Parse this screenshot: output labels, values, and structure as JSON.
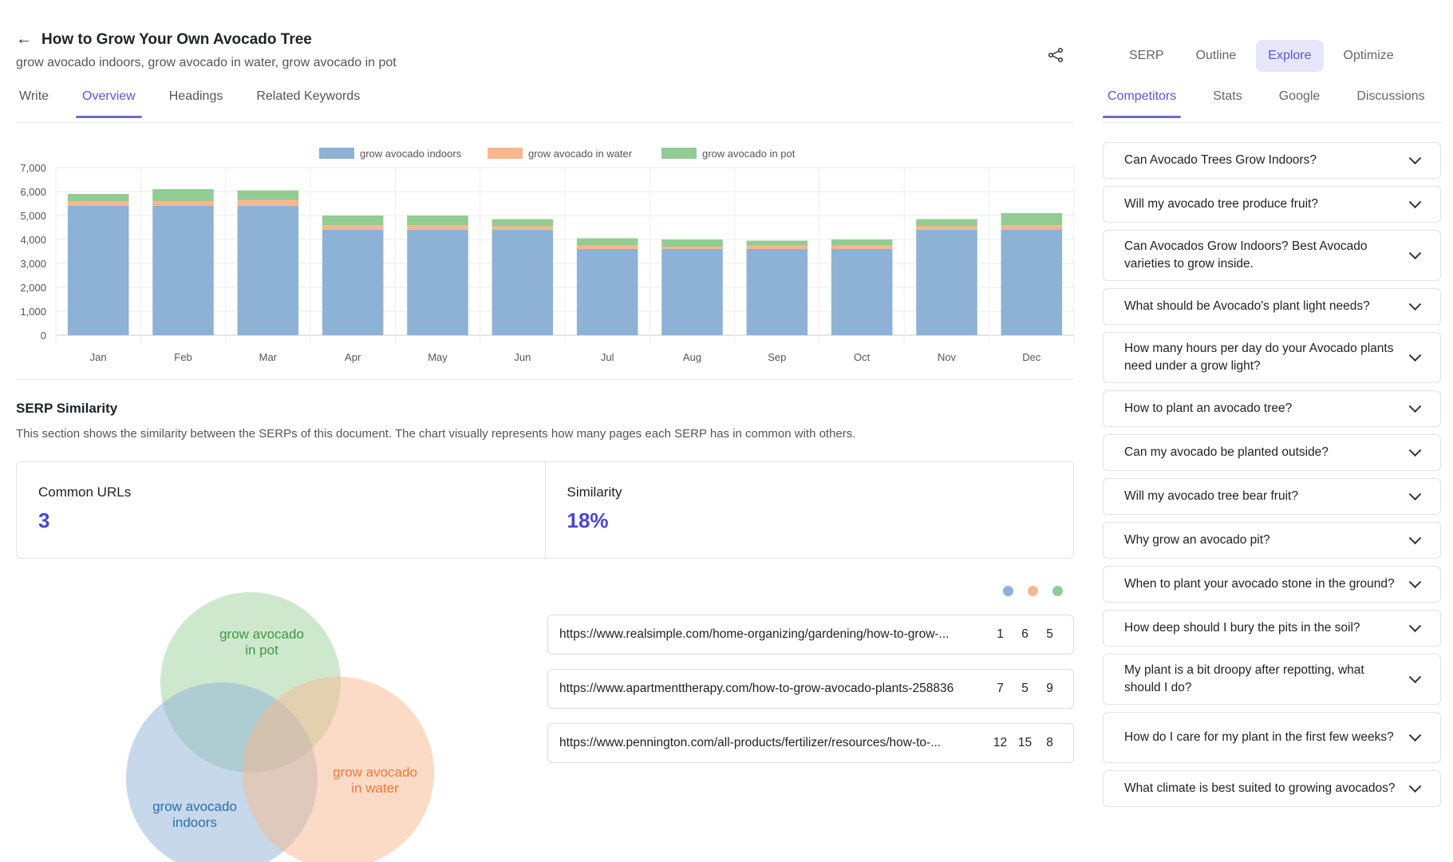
{
  "header": {
    "title": "How to Grow Your Own Avocado Tree",
    "subtitle": "grow avocado indoors, grow avocado in water, grow avocado in pot"
  },
  "tabs": [
    {
      "label": "Write"
    },
    {
      "label": "Overview",
      "active": true
    },
    {
      "label": "Headings"
    },
    {
      "label": "Related Keywords"
    }
  ],
  "right_top_tabs": [
    {
      "label": "SERP"
    },
    {
      "label": "Outline"
    },
    {
      "label": "Explore",
      "active": true
    },
    {
      "label": "Optimize"
    }
  ],
  "right_sub_tabs": [
    {
      "label": "Competitors",
      "active": true
    },
    {
      "label": "Stats"
    },
    {
      "label": "Google"
    },
    {
      "label": "Discussions"
    }
  ],
  "questions": [
    "Can Avocado Trees Grow Indoors?",
    "Will my avocado tree produce fruit?",
    "Can Avocados Grow Indoors? Best Avocado varieties to grow inside.",
    "What should be Avocado's plant light needs?",
    "How many hours per day do your Avocado plants need under a grow light?",
    "How to plant an avocado tree?",
    "Can my avocado be planted outside?",
    "Will my avocado tree bear fruit?",
    "Why grow an avocado pit?",
    "When to plant your avocado stone in the ground?",
    "How deep should I bury the pits in the soil?",
    "My plant is a bit droopy after repotting, what should I do?",
    "How do I care for my plant in the first few weeks?",
    "What climate is best suited to growing avocados?"
  ],
  "chart_data": {
    "type": "bar",
    "stacked": true,
    "categories": [
      "Jan",
      "Feb",
      "Mar",
      "Apr",
      "May",
      "Jun",
      "Jul",
      "Aug",
      "Sep",
      "Oct",
      "Nov",
      "Dec"
    ],
    "series": [
      {
        "name": "grow avocado indoors",
        "color": "#8db2d5",
        "values": [
          5400,
          5400,
          5400,
          4400,
          4400,
          4400,
          3600,
          3600,
          3600,
          3600,
          4400,
          4400
        ]
      },
      {
        "name": "grow avocado in water",
        "color": "#f8b78e",
        "values": [
          200,
          200,
          250,
          200,
          200,
          150,
          150,
          100,
          150,
          150,
          150,
          200
        ]
      },
      {
        "name": "grow avocado in pot",
        "color": "#93cc93",
        "values": [
          300,
          500,
          400,
          400,
          400,
          300,
          300,
          300,
          200,
          250,
          300,
          500
        ]
      }
    ],
    "yticks": [
      "0",
      "1,000",
      "2,000",
      "3,000",
      "4,000",
      "5,000",
      "6,000",
      "7,000"
    ],
    "ylim": [
      0,
      7000
    ],
    "grid": true,
    "legend": "top"
  },
  "serp": {
    "title": "SERP Similarity",
    "description": "This section shows the similarity between the SERPs of this document. The chart visually represents how many pages each SERP has in common with others.",
    "common_urls_label": "Common URLs",
    "common_urls_value": "3",
    "similarity_label": "Similarity",
    "similarity_value": "18%"
  },
  "venn": {
    "pot": [
      "grow avocado",
      "in pot"
    ],
    "water": [
      "grow avocado",
      "in water"
    ],
    "indoors": [
      "grow avocado",
      "indoors"
    ]
  },
  "urls": [
    {
      "url": "https://www.realsimple.com/home-organizing/gardening/how-to-grow-...",
      "ranks": [
        "1",
        "6",
        "5"
      ]
    },
    {
      "url": "https://www.apartmenttherapy.com/how-to-grow-avocado-plants-258836",
      "ranks": [
        "7",
        "5",
        "9"
      ]
    },
    {
      "url": "https://www.pennington.com/all-products/fertilizer/resources/how-to-...",
      "ranks": [
        "12",
        "15",
        "8"
      ]
    }
  ],
  "colors": {
    "accent": "#5b55d6",
    "indoors": "#8db2d5",
    "water": "#f8b78e",
    "pot": "#93cc93"
  }
}
